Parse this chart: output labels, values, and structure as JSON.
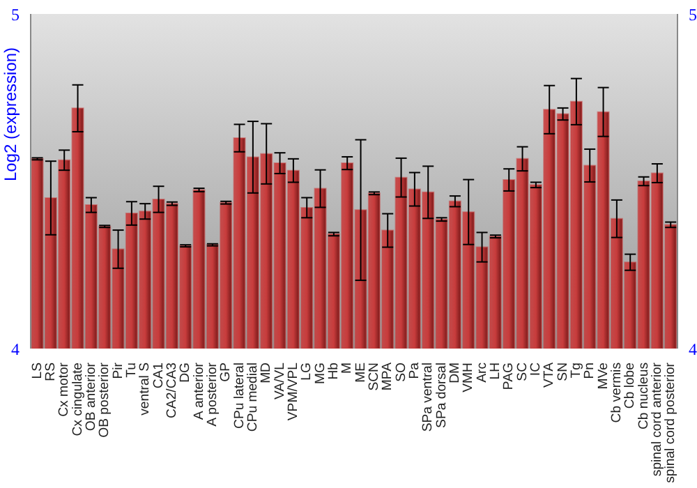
{
  "chart_data": {
    "type": "bar",
    "ylabel": "Log2 (expression)",
    "categories": [
      "LS",
      "RS",
      "Cx motor",
      "Cx cingulate",
      "OB anterior",
      "OB posterior",
      "Pir",
      "Tu",
      "ventral S",
      "CA1",
      "CA2/CA3",
      "DG",
      "A anterior",
      "A posterior",
      "GP",
      "CPu lateral",
      "CPu medial",
      "MD",
      "VA/VL",
      "VPM/VPL",
      "LG",
      "MG",
      "Hb",
      "M",
      "ME",
      "SCN",
      "MPA",
      "SO",
      "Pa",
      "SPa ventral",
      "SPa dorsal",
      "DM",
      "VMH",
      "Arc",
      "LH",
      "PAG",
      "SC",
      "IC",
      "VTA",
      "SN",
      "Tg",
      "Pn",
      "MVe",
      "Cb vermis",
      "Cb lobe",
      "Cb nucleus",
      "spinal cord anterior",
      "spinal cord posterior"
    ],
    "values": [
      4.567,
      4.45,
      4.563,
      4.718,
      4.429,
      4.365,
      4.297,
      4.404,
      4.41,
      4.446,
      4.433,
      4.307,
      4.474,
      4.31,
      4.436,
      4.629,
      4.572,
      4.582,
      4.554,
      4.532,
      4.421,
      4.478,
      4.342,
      4.554,
      4.414,
      4.464,
      4.353,
      4.511,
      4.476,
      4.467,
      4.386,
      4.44,
      4.408,
      4.303,
      4.335,
      4.504,
      4.567,
      4.489,
      4.714,
      4.701,
      4.738,
      4.547,
      4.707,
      4.388,
      4.258,
      4.5,
      4.524,
      4.37
    ],
    "errors": [
      0.003,
      0.11,
      0.03,
      0.07,
      0.022,
      0.003,
      0.057,
      0.035,
      0.023,
      0.039,
      0.005,
      0.003,
      0.005,
      0.003,
      0.004,
      0.041,
      0.107,
      0.09,
      0.031,
      0.035,
      0.03,
      0.056,
      0.005,
      0.019,
      0.21,
      0.004,
      0.05,
      0.058,
      0.05,
      0.078,
      0.005,
      0.016,
      0.097,
      0.044,
      0.004,
      0.033,
      0.036,
      0.008,
      0.072,
      0.018,
      0.069,
      0.049,
      0.073,
      0.056,
      0.024,
      0.013,
      0.028,
      0.008
    ],
    "color": "#c83c3c",
    "ylim": [
      4,
      5
    ],
    "yticks": [
      4,
      5
    ],
    "y2lim": [
      4,
      5
    ],
    "y2ticks": [
      4,
      5
    ]
  }
}
